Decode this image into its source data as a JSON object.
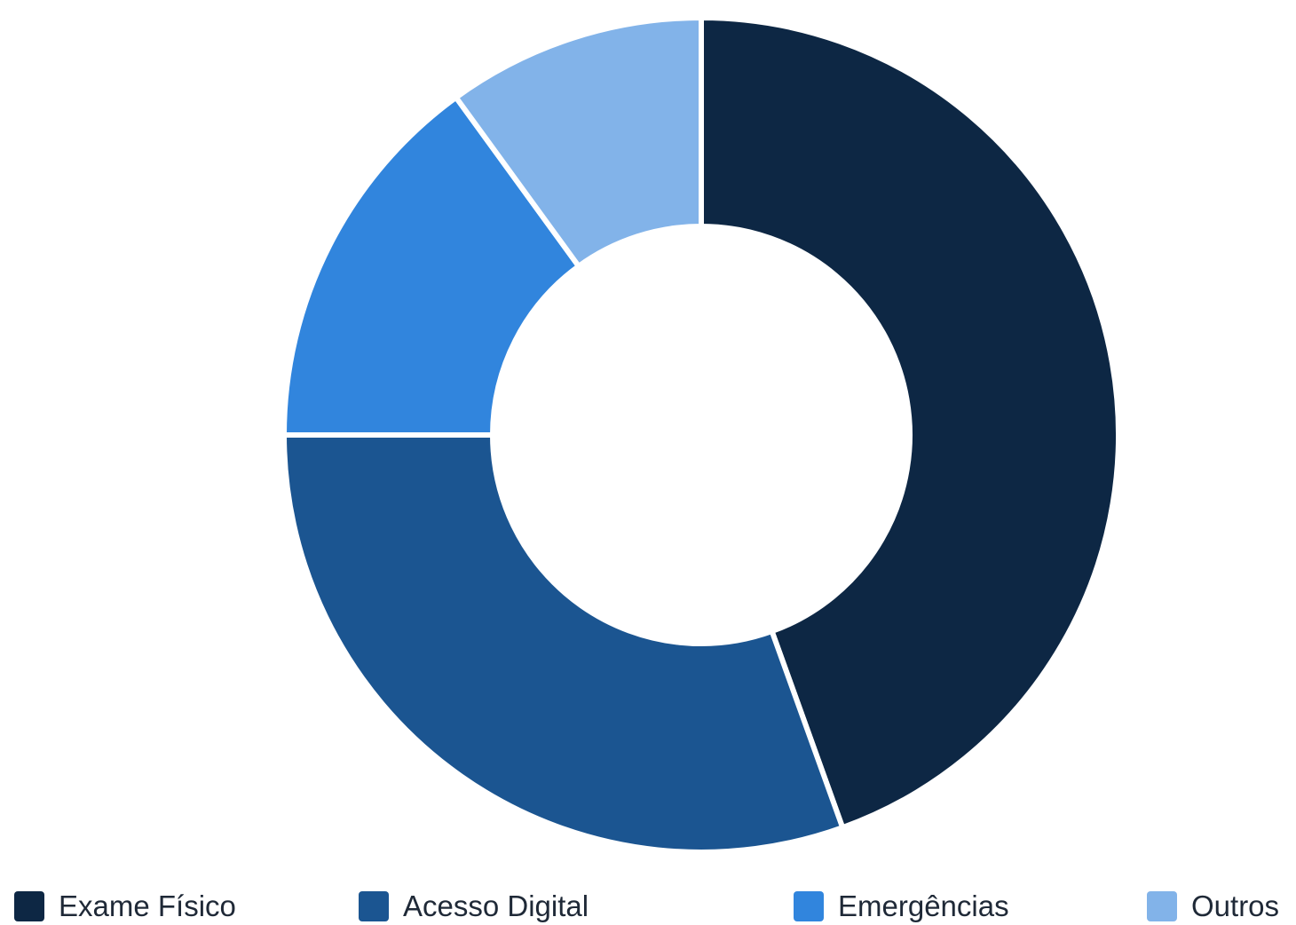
{
  "chart_data": {
    "type": "pie",
    "variant": "donut",
    "slices": [
      {
        "label": "Exame Físico",
        "value": 44.5,
        "color": "#0d2744"
      },
      {
        "label": "Acesso Digital",
        "value": 30.5,
        "color": "#1b5591"
      },
      {
        "label": "Emergências",
        "value": 15,
        "color": "#3185dd"
      },
      {
        "label": "Outros",
        "value": 10,
        "color": "#82b3e9"
      }
    ],
    "legend_position": "bottom",
    "start_angle_deg": 0,
    "direction": "clockwise"
  }
}
